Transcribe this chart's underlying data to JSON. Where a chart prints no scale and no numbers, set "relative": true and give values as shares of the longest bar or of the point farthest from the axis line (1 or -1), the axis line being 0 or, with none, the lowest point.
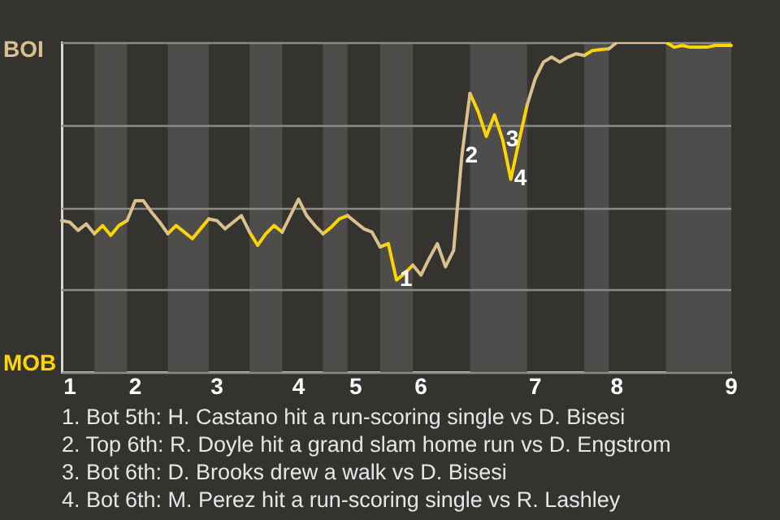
{
  "chart_data": {
    "type": "line",
    "relative": true,
    "categories": [
      null,
      "1",
      null,
      null,
      null,
      null,
      null,
      null,
      null,
      "2",
      null,
      null,
      null,
      null,
      null,
      null,
      null,
      null,
      null,
      "3",
      null,
      null,
      null,
      null,
      null,
      null,
      null,
      null,
      null,
      "4",
      null,
      null,
      null,
      null,
      null,
      null,
      "5",
      null,
      null,
      null,
      null,
      null,
      null,
      null,
      "6",
      null,
      null,
      null,
      null,
      null,
      null,
      null,
      null,
      null,
      null,
      null,
      null,
      null,
      "7",
      null,
      null,
      null,
      null,
      null,
      null,
      null,
      null,
      null,
      "8",
      null,
      null,
      null,
      null,
      null,
      null,
      null,
      null,
      null,
      null,
      null,
      null,
      null,
      "9"
    ],
    "grid": "y",
    "legend": false,
    "marker": "none",
    "line_style": "solid",
    "series": [
      {
        "color": "#d9c08c",
        "values": [
          0.46,
          0.455,
          0.43,
          0.45,
          0.42,
          null,
          null,
          null,
          0.46,
          0.52,
          0.52,
          0.485,
          0.455,
          0.42,
          null,
          null,
          null,
          null,
          0.465,
          0.46,
          0.435,
          0.455,
          0.475,
          0.425,
          null,
          null,
          null,
          0.425,
          0.475,
          0.525,
          0.475,
          0.445,
          0.42,
          null,
          null,
          0.475,
          0.455,
          0.435,
          0.425,
          0.38,
          null,
          null,
          null,
          0.325,
          0.295,
          0.345,
          0.39,
          0.32,
          0.37,
          0.655,
          0.845,
          null,
          null,
          null,
          null,
          null,
          null,
          0.81,
          0.89,
          0.94,
          0.955,
          0.94,
          0.955,
          0.965,
          0.96,
          null,
          null,
          0.98,
          1,
          1,
          1,
          1,
          1,
          1,
          1,
          null,
          null,
          null,
          null,
          null,
          null,
          null,
          null
        ]
      },
      {
        "color": "#ffd500",
        "values": [
          null,
          null,
          null,
          null,
          0.42,
          0.445,
          0.415,
          0.445,
          0.46,
          null,
          null,
          null,
          null,
          0.42,
          0.445,
          0.425,
          0.405,
          0.435,
          0.465,
          null,
          null,
          null,
          null,
          0.425,
          0.385,
          0.42,
          0.445,
          0.425,
          null,
          null,
          null,
          null,
          0.42,
          0.44,
          0.465,
          0.475,
          null,
          null,
          null,
          0.38,
          0.39,
          0.28,
          0.3,
          0.325,
          null,
          null,
          null,
          null,
          null,
          null,
          0.845,
          0.79,
          0.715,
          0.78,
          0.705,
          0.585,
          0.7,
          0.81,
          null,
          null,
          null,
          null,
          null,
          null,
          0.96,
          0.975,
          0.978,
          0.98,
          null,
          null,
          null,
          null,
          null,
          null,
          1,
          0.985,
          0.99,
          0.985,
          0.985,
          0.985,
          0.99,
          0.99,
          0.99
        ]
      }
    ],
    "annotations": [
      "BOI",
      "MOB",
      {
        "text": "1",
        "y": 0.28
      },
      {
        "text": "2",
        "y": 0.655
      },
      {
        "text": "3",
        "y": 0.705
      },
      {
        "text": "4",
        "y": 0.585
      },
      "1. Bot 5th: H. Castano hit a run-scoring single vs D. Bisesi",
      "2. Top 6th: R. Doyle hit a grand slam home run vs D. Engstrom",
      "3. Bot 6th: D. Brooks drew a walk vs D. Bisesi",
      "4. Bot 6th: M. Perez hit a run-scoring single vs R. Lashley"
    ]
  }
}
